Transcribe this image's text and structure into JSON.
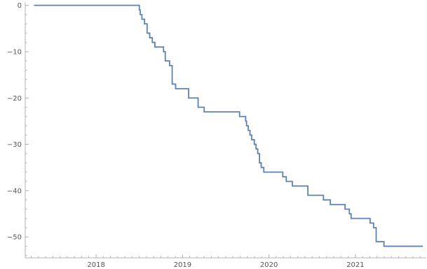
{
  "chart_data": {
    "type": "line",
    "title": "",
    "xlabel": "",
    "ylabel": "",
    "xlim": [
      2017.18,
      2021.82
    ],
    "ylim": [
      -54.5,
      0.7
    ],
    "x_ticks": [
      {
        "value": 2018,
        "label": "2018"
      },
      {
        "value": 2019,
        "label": "2019"
      },
      {
        "value": 2020,
        "label": "2020"
      },
      {
        "value": 2021,
        "label": "2021"
      }
    ],
    "x_minor_step": 0.0833333,
    "y_ticks": [
      {
        "value": 0,
        "label": "0"
      },
      {
        "value": -10,
        "label": "-10"
      },
      {
        "value": -20,
        "label": "-20"
      },
      {
        "value": -30,
        "label": "-30"
      },
      {
        "value": -40,
        "label": "-40"
      },
      {
        "value": -50,
        "label": "-50"
      }
    ],
    "y_minor_step": 2,
    "grid": false,
    "line_style": "step",
    "colors": {
      "series": "#5e81b5"
    },
    "series": [
      {
        "x": [
          2017.28,
          2018.5,
          2018.51,
          2018.53,
          2018.56,
          2018.59,
          2018.62,
          2018.65,
          2018.68,
          2018.78,
          2018.8,
          2018.85,
          2018.88,
          2018.92,
          2019.07,
          2019.18,
          2019.25,
          2019.66,
          2019.73,
          2019.74,
          2019.76,
          2019.78,
          2019.8,
          2019.83,
          2019.85,
          2019.87,
          2019.89,
          2019.91,
          2019.94,
          2020.16,
          2020.2,
          2020.27,
          2020.45,
          2020.63,
          2020.71,
          2020.88,
          2020.93,
          2020.95,
          2021.17,
          2021.21,
          2021.24,
          2021.26,
          2021.33,
          2021.78
        ],
        "y": [
          0,
          -1,
          -2,
          -3,
          -4,
          -6,
          -7,
          -8,
          -9,
          -10,
          -12,
          -13,
          -17,
          -18,
          -20,
          -22,
          -23,
          -24,
          -25,
          -26,
          -27,
          -28,
          -29,
          -30,
          -31,
          -32,
          -34,
          -35,
          -36,
          -37,
          -38,
          -39,
          -41,
          -42,
          -43,
          -44,
          -45,
          -46,
          -47,
          -48,
          -51,
          -51,
          -52,
          -52
        ]
      }
    ]
  }
}
